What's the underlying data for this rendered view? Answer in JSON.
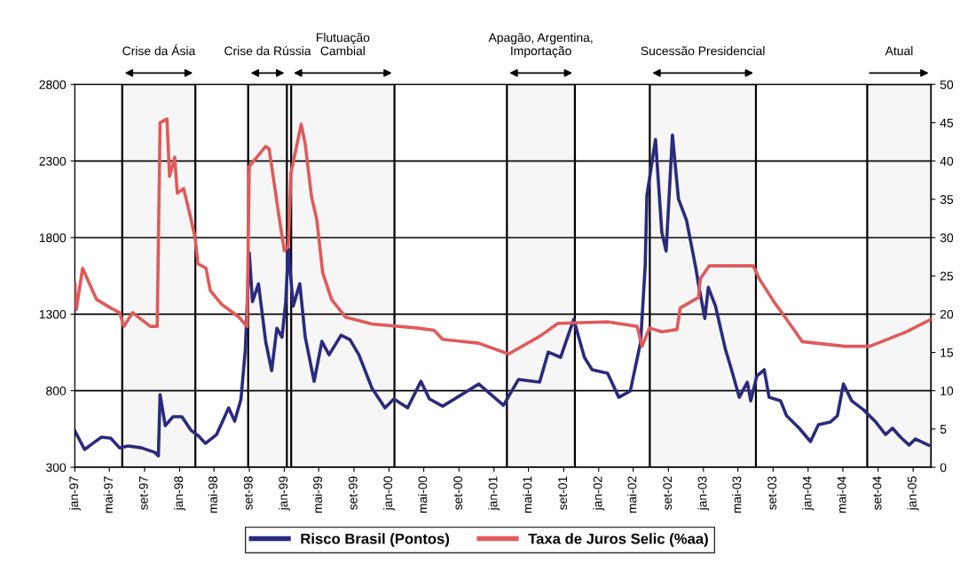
{
  "chart_data": {
    "type": "line",
    "xlim": [
      "1997-01-01",
      "2005-03-05"
    ],
    "ylim": [
      300,
      2800
    ],
    "yticks": [
      300,
      800,
      1300,
      1800,
      2300,
      2800
    ],
    "y2lim": [
      0,
      50
    ],
    "y2ticks": [
      0,
      5,
      10,
      15,
      20,
      25,
      30,
      35,
      40,
      45,
      50
    ],
    "grid": "y",
    "legend": "bottom",
    "xticks": [
      {
        "value": "1997-01-01",
        "label": "jan-97"
      },
      {
        "value": "1997-05-01",
        "label": "mai-97"
      },
      {
        "value": "1997-09-01",
        "label": "set-97"
      },
      {
        "value": "1998-01-01",
        "label": "jan-98"
      },
      {
        "value": "1998-05-01",
        "label": "mai-98"
      },
      {
        "value": "1998-09-01",
        "label": "set-98"
      },
      {
        "value": "1999-01-01",
        "label": "jan-99"
      },
      {
        "value": "1999-05-01",
        "label": "mai-99"
      },
      {
        "value": "1999-09-01",
        "label": "set-99"
      },
      {
        "value": "2000-01-01",
        "label": "jan-00"
      },
      {
        "value": "2000-05-01",
        "label": "mai-00"
      },
      {
        "value": "2000-09-01",
        "label": "set-00"
      },
      {
        "value": "2001-01-01",
        "label": "jan-01"
      },
      {
        "value": "2001-05-01",
        "label": "mai-01"
      },
      {
        "value": "2001-09-01",
        "label": "set-01"
      },
      {
        "value": "2002-01-01",
        "label": "jan-02"
      },
      {
        "value": "2002-05-01",
        "label": "mai-02"
      },
      {
        "value": "2002-09-01",
        "label": "set-02"
      },
      {
        "value": "2003-01-01",
        "label": "jan-03"
      },
      {
        "value": "2003-05-01",
        "label": "mai-03"
      },
      {
        "value": "2003-09-01",
        "label": "set-03"
      },
      {
        "value": "2004-01-01",
        "label": "jan-04"
      },
      {
        "value": "2004-05-01",
        "label": "mai-04"
      },
      {
        "value": "2004-09-01",
        "label": "set-04"
      },
      {
        "value": "2005-01-01",
        "label": "jan-05"
      }
    ],
    "bands": [
      {
        "axis": "x",
        "from": "1997-06-15",
        "to": "1998-02-25",
        "label": "Crise da Ásia"
      },
      {
        "axis": "x",
        "from": "1998-08-28",
        "to": "1999-01-10",
        "label": "Crise da Rússia"
      },
      {
        "axis": "x",
        "from": "1999-01-25",
        "to": "2000-01-20",
        "label": "Flutuação\nCambial"
      },
      {
        "axis": "x",
        "from": "2001-02-15",
        "to": "2001-10-10",
        "label": "Apagão, Argentina,\nImportação"
      },
      {
        "axis": "x",
        "from": "2002-06-28",
        "to": "2003-07-03",
        "label": "Sucessão Presidencial"
      },
      {
        "axis": "x",
        "from": "2004-07-25",
        "to": "2005-03-05",
        "label": "Atual"
      }
    ],
    "series": [
      {
        "name": "Risco Brasil (Pontos)",
        "color": "#2b2a7e",
        "x": [
          "1997-01-01",
          "1997-02-04",
          "1997-03-04",
          "1997-04-04",
          "1997-05-06",
          "1997-06-06",
          "1997-07-06",
          "1997-08-21",
          "1997-10-06",
          "1997-10-19",
          "1997-10-25",
          "1997-11-12",
          "1997-12-09",
          "1998-01-09",
          "1998-02-09",
          "1998-03-09",
          "1998-04-01",
          "1998-05-10",
          "1998-06-21",
          "1998-07-12",
          "1998-08-03",
          "1998-08-18",
          "1998-09-01",
          "1998-09-12",
          "1998-10-03",
          "1998-10-28",
          "1998-11-18",
          "1998-12-06",
          "1998-12-24",
          "1999-01-06",
          "1999-01-15",
          "1999-02-01",
          "1999-02-24",
          "1999-03-15",
          "1999-04-15",
          "1999-05-12",
          "1999-06-06",
          "1999-07-18",
          "1999-08-18",
          "1999-09-18",
          "1999-11-03",
          "1999-12-18",
          "2000-01-18",
          "2000-03-06",
          "2000-04-21",
          "2000-05-21",
          "2000-07-06",
          "2000-11-09",
          "2001-02-03",
          "2001-03-27",
          "2001-06-09",
          "2001-07-09",
          "2001-08-21",
          "2001-10-06",
          "2001-11-12",
          "2001-12-09",
          "2002-02-01",
          "2002-03-12",
          "2002-04-21",
          "2002-05-27",
          "2002-06-12",
          "2002-06-18",
          "2002-07-18",
          "2002-08-09",
          "2002-08-24",
          "2002-09-15",
          "2002-10-06",
          "2002-11-03",
          "2002-12-06",
          "2002-12-15",
          "2003-01-06",
          "2003-01-18",
          "2003-02-12",
          "2003-03-18",
          "2003-04-09",
          "2003-05-06",
          "2003-06-03",
          "2003-06-15",
          "2003-07-06",
          "2003-08-01",
          "2003-08-18",
          "2003-09-27",
          "2003-10-18",
          "2003-12-01",
          "2004-01-09",
          "2004-02-06",
          "2004-03-18",
          "2004-04-12",
          "2004-05-03",
          "2004-06-01",
          "2004-07-12",
          "2004-08-24",
          "2004-09-27",
          "2004-10-21",
          "2004-11-18",
          "2004-12-18",
          "2005-01-09",
          "2005-02-24"
        ],
        "values": [
          537,
          416,
          456,
          497,
          490,
          427,
          439,
          427,
          398,
          375,
          775,
          572,
          630,
          630,
          543,
          503,
          456,
          514,
          688,
          601,
          745,
          1064,
          1700,
          1382,
          1498,
          1122,
          931,
          1208,
          1150,
          1382,
          1729,
          1353,
          1498,
          1150,
          861,
          1122,
          1035,
          1162,
          1133,
          1035,
          815,
          688,
          746,
          688,
          861,
          746,
          699,
          844,
          705,
          873,
          856,
          1052,
          1018,
          1266,
          1018,
          937,
          914,
          757,
          798,
          1116,
          1614,
          2077,
          2441,
          1834,
          1712,
          2470,
          2053,
          1914,
          1596,
          1492,
          1272,
          1475,
          1353,
          1075,
          937,
          757,
          856,
          734,
          896,
          937,
          757,
          734,
          636,
          555,
          468,
          578,
          595,
          636,
          844,
          734,
          676,
          595,
          514,
          555,
          497,
          445,
          485,
          445
        ]
      },
      {
        "name": "Taxa de Juros Selic (%aa)",
        "color": "#e05a5a",
        "axis": "y2",
        "x": [
          "1997-01-01",
          "1997-01-06",
          "1997-01-28",
          "1997-02-18",
          "1997-03-18",
          "1997-05-06",
          "1997-06-06",
          "1997-06-21",
          "1997-07-21",
          "1997-09-21",
          "1997-10-15",
          "1997-10-25",
          "1997-11-18",
          "1997-11-27",
          "1997-12-15",
          "1997-12-24",
          "1998-01-15",
          "1998-02-03",
          "1998-02-24",
          "1998-03-06",
          "1998-04-03",
          "1998-04-18",
          "1998-05-27",
          "1998-07-27",
          "1998-08-24",
          "1998-09-01",
          "1998-10-28",
          "1998-11-09",
          "1998-12-15",
          "1999-01-01",
          "1999-01-15",
          "1999-01-24",
          "1999-03-01",
          "1999-03-15",
          "1999-04-06",
          "1999-04-24",
          "1999-05-15",
          "1999-06-15",
          "1999-08-03",
          "1999-11-03",
          "2000-04-06",
          "2000-06-06",
          "2000-07-06",
          "2000-11-09",
          "2001-02-21",
          "2001-06-09",
          "2001-08-12",
          "2002-02-01",
          "2002-05-15",
          "2002-06-01",
          "2002-06-27",
          "2002-08-09",
          "2002-10-01",
          "2002-10-12",
          "2002-12-15",
          "2002-12-21",
          "2003-01-21",
          "2003-06-24",
          "2003-07-15",
          "2003-09-06",
          "2003-10-09",
          "2003-12-12",
          "2004-05-09",
          "2004-08-03",
          "2004-12-09",
          "2005-03-03"
        ],
        "values": [
          24,
          20.6,
          26,
          24.2,
          21.9,
          20.8,
          20.2,
          18.4,
          20.2,
          18.4,
          18.4,
          45,
          45.5,
          38,
          40.5,
          35.8,
          36.4,
          33.5,
          30,
          26.6,
          26,
          23.1,
          21.3,
          19.6,
          18.4,
          39.3,
          41.9,
          41.6,
          32.4,
          28.3,
          28.9,
          38.4,
          44.8,
          42.2,
          35.3,
          32.4,
          25.4,
          21.9,
          19.6,
          18.7,
          18.2,
          17.9,
          16.7,
          16.2,
          14.8,
          17.1,
          18.8,
          19.0,
          18.4,
          15.8,
          18.2,
          17.7,
          18.0,
          20.8,
          22.2,
          24.6,
          26.3,
          26.3,
          24.6,
          21.5,
          19.8,
          16.4,
          15.8,
          15.8,
          17.7,
          19.3
        ]
      }
    ]
  }
}
